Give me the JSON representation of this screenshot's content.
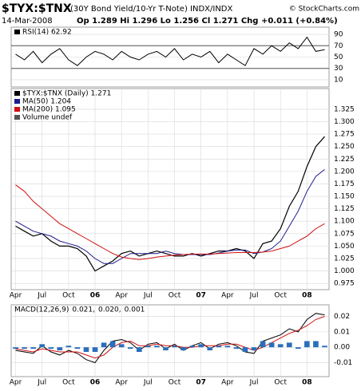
{
  "header": {
    "symbol": "$TYX:$TNX",
    "description": "(30Y Bond Yield/10-Yr T-Note) INDX/INDX",
    "credit": "© StockCharts.com",
    "date": "14-Mar-2008",
    "quote": "Op 1.289 Hi 1.296 Lo 1.256 Cl 1.271 Chg +0.011 (+0.84%)"
  },
  "chart_data": [
    {
      "type": "line",
      "legend": [
        "RSI(14) 62.92"
      ],
      "ylim": [
        0,
        100
      ],
      "yticks": [
        90,
        70,
        50,
        30,
        10
      ],
      "guides": [
        70,
        30
      ],
      "grid": true,
      "series": [
        {
          "name": "RSI(14)",
          "color": "#000000",
          "values": [
            55,
            45,
            60,
            40,
            55,
            65,
            45,
            35,
            50,
            60,
            55,
            45,
            60,
            50,
            45,
            55,
            60,
            50,
            65,
            45,
            55,
            50,
            60,
            40,
            55,
            45,
            35,
            65,
            55,
            70,
            60,
            75,
            65,
            85,
            60,
            62.92
          ]
        }
      ]
    },
    {
      "type": "line",
      "legend": [
        "$TYX:$TNX (Daily) 1.271",
        "MA(50) 1.204",
        "MA(200) 1.095",
        "Volume undef"
      ],
      "categories": [
        "Apr",
        null,
        null,
        "Jul",
        null,
        null,
        "Oct",
        null,
        null,
        "06",
        null,
        null,
        "Apr",
        null,
        null,
        "Jul",
        null,
        null,
        "Oct",
        null,
        null,
        "07",
        null,
        null,
        "Apr",
        null,
        null,
        "Jul",
        null,
        null,
        "Oct",
        null,
        null,
        "08",
        null,
        null
      ],
      "ylim": [
        0.964,
        1.365
      ],
      "grid": true,
      "yticks": [
        1.325,
        {
          "value": 1.3,
          "label": "1.300"
        },
        1.275,
        {
          "value": 1.25,
          "label": "1.250"
        },
        1.225,
        {
          "value": 1.2,
          "label": "1.200"
        },
        1.175,
        {
          "value": 1.15,
          "label": "1.150"
        },
        1.125,
        {
          "value": 1.1,
          "label": "1.100"
        },
        1.075,
        {
          "value": 1.05,
          "label": "1.050"
        },
        1.025,
        {
          "value": 1,
          "label": "1.000"
        },
        0.975
      ],
      "series": [
        {
          "name": "$TYX:$TNX (Daily)",
          "color": "#000000",
          "values": [
            1.09,
            1.08,
            1.07,
            1.075,
            1.06,
            1.05,
            1.05,
            1.045,
            1.03,
            1.0,
            1.01,
            1.02,
            1.035,
            1.04,
            1.03,
            1.035,
            1.04,
            1.035,
            1.03,
            1.03,
            1.035,
            1.03,
            1.035,
            1.04,
            1.04,
            1.045,
            1.04,
            1.025,
            1.055,
            1.06,
            1.085,
            1.13,
            1.16,
            1.21,
            1.25,
            1.27
          ]
        },
        {
          "name": "MA(50)",
          "color": "#1c1c8c",
          "values": [
            1.1,
            1.09,
            1.08,
            1.075,
            1.07,
            1.06,
            1.055,
            1.05,
            1.04,
            1.025,
            1.015,
            1.015,
            1.025,
            1.035,
            1.035,
            1.035,
            1.035,
            1.04,
            1.035,
            1.033,
            1.033,
            1.033,
            1.033,
            1.036,
            1.04,
            1.042,
            1.042,
            1.035,
            1.038,
            1.045,
            1.06,
            1.09,
            1.12,
            1.16,
            1.19,
            1.204
          ]
        },
        {
          "name": "MA(200)",
          "color": "#d01010",
          "values": [
            1.173,
            1.16,
            1.14,
            1.125,
            1.11,
            1.095,
            1.085,
            1.075,
            1.065,
            1.055,
            1.045,
            1.035,
            1.028,
            1.025,
            1.023,
            1.025,
            1.028,
            1.03,
            1.032,
            1.033,
            1.034,
            1.034,
            1.034,
            1.035,
            1.036,
            1.037,
            1.037,
            1.037,
            1.038,
            1.04,
            1.045,
            1.05,
            1.06,
            1.07,
            1.085,
            1.095
          ]
        }
      ]
    },
    {
      "type": "line",
      "legend": [
        "MACD(12,26,9)",
        "0.021,",
        "0.020,",
        "0.001"
      ],
      "categories": [
        "Apr",
        null,
        null,
        "Jul",
        null,
        null,
        "Oct",
        null,
        null,
        "06",
        null,
        null,
        "Apr",
        null,
        null,
        "Jul",
        null,
        null,
        "Oct",
        null,
        null,
        "07",
        null,
        null,
        "Apr",
        null,
        null,
        "Jul",
        null,
        null,
        "Oct",
        null,
        null,
        "08",
        null,
        null
      ],
      "ylim": [
        -0.018,
        0.027
      ],
      "grid": true,
      "yticks": [
        0.02,
        0.01,
        {
          "value": 0,
          "label": "0.00"
        },
        -0.01
      ],
      "series": [
        {
          "name": "MACD",
          "color": "#000000",
          "values": [
            -0.002,
            -0.003,
            -0.004,
            0.001,
            -0.003,
            -0.005,
            -0.002,
            -0.004,
            -0.008,
            -0.01,
            -0.002,
            0.004,
            0.005,
            0.003,
            -0.002,
            0.002,
            0.003,
            -0.001,
            0.002,
            -0.002,
            0.001,
            0.003,
            -0.001,
            0.002,
            0.003,
            0.001,
            -0.003,
            -0.004,
            0.004,
            0.006,
            0.008,
            0.012,
            0.01,
            0.018,
            0.022,
            0.021
          ]
        },
        {
          "name": "Signal",
          "color": "#d01010",
          "values": [
            -0.001,
            -0.002,
            -0.003,
            -0.001,
            -0.002,
            -0.003,
            -0.003,
            -0.003,
            -0.005,
            -0.007,
            -0.005,
            0.0,
            0.003,
            0.004,
            0.001,
            0.001,
            0.002,
            0.001,
            0.001,
            0.0,
            0.0,
            0.001,
            0.001,
            0.001,
            0.002,
            0.002,
            0.0,
            -0.002,
            0.0,
            0.003,
            0.006,
            0.009,
            0.011,
            0.014,
            0.018,
            0.02
          ]
        },
        {
          "name": "Histogram",
          "color": "#2a6ebb",
          "style": "bar",
          "values": [
            -0.001,
            -0.001,
            -0.001,
            0.002,
            -0.001,
            -0.002,
            0.001,
            -0.001,
            -0.003,
            -0.003,
            0.003,
            0.004,
            0.002,
            -0.001,
            -0.003,
            0.001,
            0.001,
            -0.002,
            0.001,
            -0.002,
            0.001,
            0.002,
            -0.002,
            0.001,
            0.001,
            -0.001,
            -0.003,
            -0.002,
            0.004,
            0.003,
            0.002,
            0.003,
            -0.001,
            0.004,
            0.004,
            0.001
          ]
        }
      ]
    }
  ]
}
